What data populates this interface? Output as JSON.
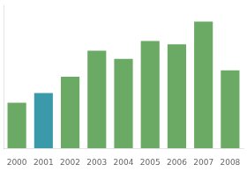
{
  "chart_data": {
    "type": "bar",
    "categories": [
      "2000",
      "2001",
      "2002",
      "2003",
      "2004",
      "2005",
      "2006",
      "2007",
      "2008"
    ],
    "values": [
      28,
      34,
      44,
      60,
      55,
      66,
      64,
      78,
      48
    ],
    "colors": [
      "#6aaa64",
      "#3a9aaa",
      "#6aaa64",
      "#6aaa64",
      "#6aaa64",
      "#6aaa64",
      "#6aaa64",
      "#6aaa64",
      "#6aaa64"
    ],
    "ylim": [
      0,
      88
    ],
    "grid": false,
    "tick_labels": "x"
  }
}
